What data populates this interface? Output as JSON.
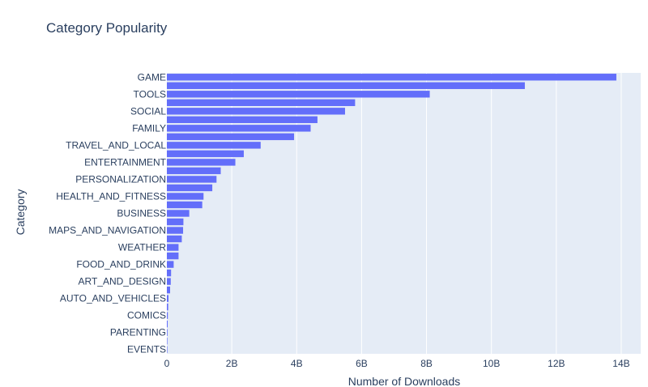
{
  "chart_data": {
    "type": "bar",
    "orientation": "horizontal",
    "title": "Category Popularity",
    "xlabel": "Number of Downloads",
    "ylabel": "Category",
    "xlim": [
      0,
      14600000000
    ],
    "x_ticks": [
      {
        "value": 0,
        "label": "0"
      },
      {
        "value": 2000000000,
        "label": "2B"
      },
      {
        "value": 4000000000,
        "label": "4B"
      },
      {
        "value": 6000000000,
        "label": "6B"
      },
      {
        "value": 8000000000,
        "label": "8B"
      },
      {
        "value": 10000000000,
        "label": "10B"
      },
      {
        "value": 12000000000,
        "label": "12B"
      },
      {
        "value": 14000000000,
        "label": "14B"
      }
    ],
    "categories": [
      {
        "name": "GAME",
        "value": 13850000000,
        "label_shown": true
      },
      {
        "name": "",
        "value": 11030000000,
        "label_shown": false
      },
      {
        "name": "TOOLS",
        "value": 8100000000,
        "label_shown": true
      },
      {
        "name": "",
        "value": 5800000000,
        "label_shown": false
      },
      {
        "name": "SOCIAL",
        "value": 5490000000,
        "label_shown": true
      },
      {
        "name": "",
        "value": 4640000000,
        "label_shown": false
      },
      {
        "name": "FAMILY",
        "value": 4430000000,
        "label_shown": true
      },
      {
        "name": "",
        "value": 3920000000,
        "label_shown": false
      },
      {
        "name": "TRAVEL_AND_LOCAL",
        "value": 2890000000,
        "label_shown": true
      },
      {
        "name": "",
        "value": 2370000000,
        "label_shown": false
      },
      {
        "name": "ENTERTAINMENT",
        "value": 2110000000,
        "label_shown": true
      },
      {
        "name": "",
        "value": 1660000000,
        "label_shown": false
      },
      {
        "name": "PERSONALIZATION",
        "value": 1530000000,
        "label_shown": true
      },
      {
        "name": "",
        "value": 1400000000,
        "label_shown": false
      },
      {
        "name": "HEALTH_AND_FITNESS",
        "value": 1130000000,
        "label_shown": true
      },
      {
        "name": "",
        "value": 1090000000,
        "label_shown": false
      },
      {
        "name": "BUSINESS",
        "value": 690000000,
        "label_shown": true
      },
      {
        "name": "",
        "value": 510000000,
        "label_shown": false
      },
      {
        "name": "MAPS_AND_NAVIGATION",
        "value": 500000000,
        "label_shown": true
      },
      {
        "name": "",
        "value": 460000000,
        "label_shown": false
      },
      {
        "name": "WEATHER",
        "value": 360000000,
        "label_shown": true
      },
      {
        "name": "",
        "value": 360000000,
        "label_shown": false
      },
      {
        "name": "FOOD_AND_DRINK",
        "value": 210000000,
        "label_shown": true
      },
      {
        "name": "",
        "value": 130000000,
        "label_shown": false
      },
      {
        "name": "ART_AND_DESIGN",
        "value": 120000000,
        "label_shown": true
      },
      {
        "name": "",
        "value": 100000000,
        "label_shown": false
      },
      {
        "name": "AUTO_AND_VEHICLES",
        "value": 50000000,
        "label_shown": true
      },
      {
        "name": "",
        "value": 40000000,
        "label_shown": false
      },
      {
        "name": "COMICS",
        "value": 30000000,
        "label_shown": true
      },
      {
        "name": "",
        "value": 25000000,
        "label_shown": false
      },
      {
        "name": "PARENTING",
        "value": 20000000,
        "label_shown": true
      },
      {
        "name": "",
        "value": 15000000,
        "label_shown": false
      },
      {
        "name": "EVENTS",
        "value": 10000000,
        "label_shown": true
      }
    ],
    "grid": true,
    "colors": {
      "bar": "#636efa",
      "plot_bg": "#e5ecf6",
      "grid": "#ffffff",
      "text": "#2a3f5f"
    }
  }
}
